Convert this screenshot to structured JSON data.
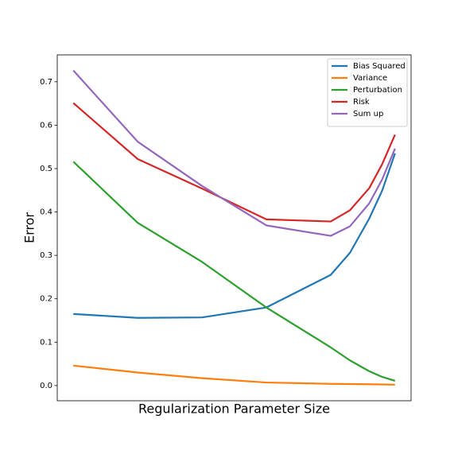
{
  "chart_data": {
    "type": "line",
    "xlabel": "Regularization Parameter Size",
    "ylabel": "Error",
    "x": [
      0,
      1,
      2,
      3,
      4,
      4.3,
      4.6,
      4.8,
      5.0
    ],
    "xlim": [
      -0.25,
      5.25
    ],
    "ylim": [
      -0.035,
      0.762
    ],
    "yticks": [
      {
        "value": 0,
        "label": "0.0"
      },
      0.1,
      0.2,
      0.3,
      0.4,
      0.5,
      0.6,
      0.7
    ],
    "legend": "upper right",
    "series": [
      {
        "name": "Bias Squared",
        "color": "#1f77b4",
        "values": [
          0.165,
          0.156,
          0.157,
          0.18,
          0.255,
          0.306,
          0.385,
          0.449,
          0.535
        ]
      },
      {
        "name": "Variance",
        "color": "#ff7f0e",
        "values": [
          0.046,
          0.03,
          0.017,
          0.007,
          0.004,
          0.0035,
          0.003,
          0.0025,
          0.002
        ]
      },
      {
        "name": "Perturbation",
        "color": "#2ca02c",
        "values": [
          0.516,
          0.375,
          0.285,
          0.18,
          0.088,
          0.058,
          0.033,
          0.02,
          0.011
        ]
      },
      {
        "name": "Risk",
        "color": "#d62728",
        "values": [
          0.651,
          0.522,
          0.454,
          0.383,
          0.378,
          0.404,
          0.455,
          0.51,
          0.578
        ]
      },
      {
        "name": "Sum up",
        "color": "#9467bd",
        "values": [
          0.726,
          0.562,
          0.46,
          0.369,
          0.345,
          0.367,
          0.42,
          0.475,
          0.546
        ]
      }
    ]
  }
}
